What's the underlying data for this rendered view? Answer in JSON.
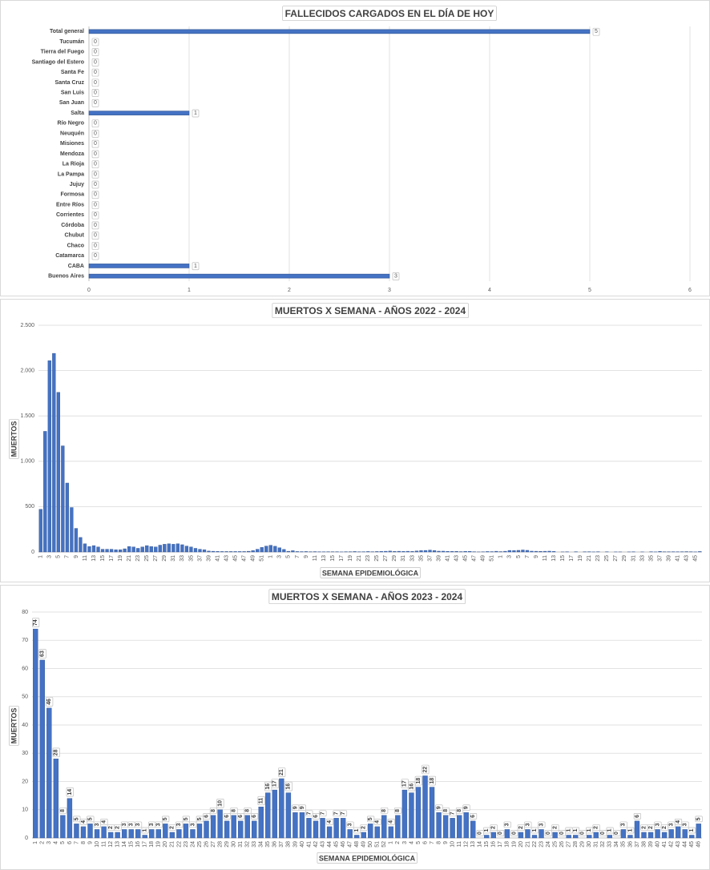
{
  "chart_data": [
    {
      "type": "bar",
      "orientation": "horizontal",
      "title": "FALLECIDOS CARGADOS EN EL DÍA DE HOY",
      "categories": [
        "Total general",
        "Tucumán",
        "Tierra del Fuego",
        "Santiago del Estero",
        "Santa Fe",
        "Santa Cruz",
        "San Luis",
        "San Juan",
        "Salta",
        "Río Negro",
        "Neuquén",
        "Misiones",
        "Mendoza",
        "La Rioja",
        "La Pampa",
        "Jujuy",
        "Formosa",
        "Entre Ríos",
        "Corrientes",
        "Córdoba",
        "Chubut",
        "Chaco",
        "Catamarca",
        "CABA",
        "Buenos Aires"
      ],
      "values": [
        5,
        0,
        0,
        0,
        0,
        0,
        0,
        0,
        1,
        0,
        0,
        0,
        0,
        0,
        0,
        0,
        0,
        0,
        0,
        0,
        0,
        0,
        0,
        1,
        3
      ],
      "color": "#4472c4",
      "show_values": true,
      "grid": true,
      "xlim": [
        0,
        6
      ],
      "xticks": [
        0,
        1,
        2,
        3,
        4,
        5,
        6
      ]
    },
    {
      "type": "bar",
      "orientation": "vertical",
      "title": "MUERTOS X SEMANA - AÑOS 2022 - 2024",
      "x_label": "SEMANA EPIDEMIOLÓGICA",
      "y_label": "MUERTOS",
      "categories": [
        1,
        null,
        3,
        null,
        5,
        null,
        7,
        null,
        9,
        null,
        11,
        null,
        13,
        null,
        15,
        null,
        17,
        null,
        19,
        null,
        21,
        null,
        23,
        null,
        25,
        null,
        27,
        null,
        29,
        null,
        31,
        null,
        33,
        null,
        35,
        null,
        37,
        null,
        39,
        null,
        41,
        null,
        43,
        null,
        45,
        null,
        47,
        null,
        49,
        null,
        51,
        null,
        1,
        null,
        3,
        null,
        5,
        null,
        7,
        null,
        9,
        null,
        11,
        null,
        13,
        null,
        15,
        null,
        17,
        null,
        19,
        null,
        21,
        null,
        23,
        null,
        25,
        null,
        27,
        null,
        29,
        null,
        31,
        null,
        33,
        null,
        35,
        null,
        37,
        null,
        39,
        null,
        41,
        null,
        43,
        null,
        45,
        null,
        47,
        null,
        49,
        null,
        51,
        null,
        1,
        null,
        3,
        null,
        5,
        null,
        7,
        null,
        9,
        null,
        11,
        null,
        13,
        null,
        15,
        null,
        17,
        null,
        19,
        null,
        21,
        null,
        23,
        null,
        25,
        null,
        27,
        null,
        29,
        null,
        31,
        null,
        33,
        null,
        35,
        null,
        37,
        null,
        39,
        null,
        41,
        null,
        43,
        null,
        45,
        null
      ],
      "values": [
        470,
        1330,
        2110,
        2190,
        1760,
        1170,
        760,
        490,
        260,
        160,
        90,
        60,
        70,
        55,
        30,
        30,
        30,
        25,
        25,
        35,
        60,
        55,
        40,
        55,
        70,
        60,
        55,
        75,
        85,
        90,
        85,
        90,
        80,
        65,
        55,
        40,
        30,
        25,
        10,
        8,
        6,
        5,
        5,
        5,
        5,
        5,
        5,
        8,
        15,
        30,
        50,
        65,
        74,
        63,
        46,
        28,
        8,
        14,
        5,
        4,
        5,
        3,
        4,
        2,
        2,
        3,
        3,
        3,
        1,
        3,
        3,
        5,
        2,
        3,
        5,
        3,
        5,
        6,
        8,
        10,
        6,
        8,
        6,
        8,
        6,
        11,
        16,
        17,
        21,
        16,
        9,
        9,
        7,
        6,
        7,
        4,
        7,
        7,
        3,
        1,
        2,
        5,
        4,
        8,
        4,
        8,
        17,
        16,
        18,
        22,
        18,
        9,
        8,
        7,
        8,
        9,
        6,
        0,
        1,
        2,
        0,
        3,
        0,
        2,
        3,
        1,
        3,
        0,
        2,
        0,
        1,
        1,
        0,
        1,
        2,
        0,
        1,
        0,
        3,
        1,
        6,
        2,
        2,
        3,
        2,
        3,
        4,
        3,
        1,
        5
      ],
      "color": "#4472c4",
      "show_values": false,
      "grid": true,
      "ylim": [
        0,
        2500
      ],
      "yticks": [
        0,
        500,
        {
          "value": 1000,
          "label": "1.000"
        },
        {
          "value": 1500,
          "label": "1.500"
        },
        {
          "value": 2000,
          "label": "2.000"
        },
        {
          "value": 2500,
          "label": "2.500"
        }
      ]
    },
    {
      "type": "bar",
      "orientation": "vertical",
      "title": "MUERTOS X SEMANA - AÑOS 2023 - 2024",
      "x_label": "SEMANA EPIDEMIOLÓGICA",
      "y_label": "MUERTOS",
      "categories": [
        1,
        2,
        3,
        4,
        5,
        6,
        7,
        8,
        9,
        10,
        11,
        12,
        13,
        14,
        15,
        16,
        17,
        18,
        19,
        20,
        21,
        22,
        23,
        24,
        25,
        26,
        27,
        28,
        29,
        30,
        31,
        32,
        33,
        34,
        35,
        36,
        37,
        38,
        39,
        40,
        41,
        42,
        43,
        44,
        45,
        46,
        47,
        48,
        49,
        50,
        51,
        52,
        1,
        2,
        3,
        4,
        5,
        6,
        7,
        8,
        9,
        10,
        11,
        12,
        13,
        14,
        15,
        16,
        17,
        18,
        19,
        20,
        21,
        22,
        23,
        24,
        25,
        26,
        27,
        28,
        29,
        30,
        31,
        32,
        33,
        34,
        35,
        36,
        37,
        38,
        39,
        40,
        41,
        42,
        43,
        44,
        45,
        46
      ],
      "values": [
        74,
        63,
        46,
        28,
        8,
        14,
        5,
        4,
        5,
        3,
        4,
        2,
        2,
        3,
        3,
        3,
        1,
        3,
        3,
        5,
        2,
        3,
        5,
        3,
        5,
        6,
        8,
        10,
        6,
        8,
        6,
        8,
        6,
        11,
        16,
        17,
        21,
        16,
        9,
        9,
        7,
        6,
        7,
        4,
        7,
        7,
        3,
        1,
        2,
        5,
        4,
        8,
        4,
        8,
        17,
        16,
        18,
        22,
        18,
        9,
        8,
        7,
        8,
        9,
        6,
        0,
        1,
        2,
        0,
        3,
        0,
        2,
        3,
        1,
        3,
        0,
        2,
        0,
        1,
        1,
        0,
        1,
        2,
        0,
        1,
        0,
        3,
        1,
        6,
        2,
        2,
        3,
        2,
        3,
        4,
        3,
        1,
        5
      ],
      "color": "#4472c4",
      "show_values": true,
      "grid": true,
      "ylim": [
        0,
        80
      ],
      "yticks": [
        0,
        10,
        20,
        30,
        40,
        50,
        60,
        70,
        80
      ]
    }
  ]
}
